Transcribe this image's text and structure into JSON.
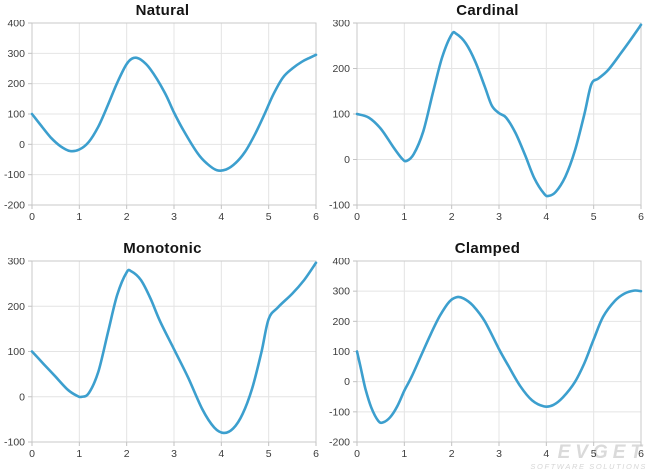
{
  "watermark": {
    "brand": "EVGET",
    "tagline": "SOFTWARE SOLUTIONS"
  },
  "style": {
    "line_color": "#3c9fce",
    "grid_color": "#e4e4e4",
    "border_color": "#c9c9c9",
    "tick_mark_color": "#c2c2c2",
    "tick_label_color": "#3d3d3d",
    "title_color": "#141414",
    "background": "#ffffff"
  },
  "chart_data": [
    {
      "id": "natural",
      "type": "line",
      "title": "Natural",
      "xlim": [
        0,
        6
      ],
      "ylim": [
        -200,
        400
      ],
      "xticks": [
        0,
        1,
        2,
        3,
        4,
        5,
        6
      ],
      "yticks": [
        -200,
        -100,
        0,
        100,
        200,
        300,
        400
      ],
      "grid": true,
      "legend": null,
      "points": [
        [
          0,
          100
        ],
        [
          0.2,
          60
        ],
        [
          0.4,
          22
        ],
        [
          0.6,
          -6
        ],
        [
          0.8,
          -22
        ],
        [
          1.0,
          -17
        ],
        [
          1.2,
          8
        ],
        [
          1.4,
          58
        ],
        [
          1.6,
          128
        ],
        [
          1.8,
          203
        ],
        [
          2.0,
          265
        ],
        [
          2.15,
          285
        ],
        [
          2.3,
          279
        ],
        [
          2.5,
          248
        ],
        [
          2.8,
          172
        ],
        [
          3.0,
          105
        ],
        [
          3.2,
          46
        ],
        [
          3.5,
          -30
        ],
        [
          3.7,
          -64
        ],
        [
          3.9,
          -85
        ],
        [
          4.1,
          -83
        ],
        [
          4.3,
          -62
        ],
        [
          4.5,
          -25
        ],
        [
          4.7,
          30
        ],
        [
          4.9,
          95
        ],
        [
          5.1,
          165
        ],
        [
          5.3,
          220
        ],
        [
          5.5,
          250
        ],
        [
          5.7,
          272
        ],
        [
          5.85,
          284
        ],
        [
          6,
          295
        ]
      ]
    },
    {
      "id": "cardinal",
      "type": "line",
      "title": "Cardinal",
      "xlim": [
        0,
        6
      ],
      "ylim": [
        -100,
        300
      ],
      "xticks": [
        0,
        1,
        2,
        3,
        4,
        5,
        6
      ],
      "yticks": [
        -100,
        0,
        100,
        200,
        300
      ],
      "grid": true,
      "legend": null,
      "points": [
        [
          0,
          100
        ],
        [
          0.25,
          92
        ],
        [
          0.5,
          68
        ],
        [
          0.75,
          30
        ],
        [
          0.95,
          2
        ],
        [
          1.05,
          -3
        ],
        [
          1.2,
          12
        ],
        [
          1.4,
          62
        ],
        [
          1.6,
          145
        ],
        [
          1.8,
          225
        ],
        [
          2.0,
          275
        ],
        [
          2.1,
          276
        ],
        [
          2.3,
          255
        ],
        [
          2.5,
          215
        ],
        [
          2.7,
          160
        ],
        [
          2.85,
          118
        ],
        [
          3.0,
          102
        ],
        [
          3.15,
          92
        ],
        [
          3.35,
          58
        ],
        [
          3.55,
          10
        ],
        [
          3.75,
          -42
        ],
        [
          3.95,
          -75
        ],
        [
          4.05,
          -80
        ],
        [
          4.2,
          -71
        ],
        [
          4.4,
          -38
        ],
        [
          4.6,
          18
        ],
        [
          4.8,
          98
        ],
        [
          4.95,
          165
        ],
        [
          5.1,
          178
        ],
        [
          5.3,
          196
        ],
        [
          5.55,
          230
        ],
        [
          5.8,
          266
        ],
        [
          6,
          296
        ]
      ]
    },
    {
      "id": "monotonic",
      "type": "line",
      "title": "Monotonic",
      "xlim": [
        0,
        6
      ],
      "ylim": [
        -100,
        300
      ],
      "xticks": [
        0,
        1,
        2,
        3,
        4,
        5,
        6
      ],
      "yticks": [
        -100,
        0,
        100,
        200,
        300
      ],
      "grid": true,
      "legend": null,
      "points": [
        [
          0,
          100
        ],
        [
          0.25,
          72
        ],
        [
          0.5,
          44
        ],
        [
          0.75,
          16
        ],
        [
          0.95,
          2
        ],
        [
          1.05,
          0
        ],
        [
          1.2,
          8
        ],
        [
          1.4,
          55
        ],
        [
          1.6,
          140
        ],
        [
          1.8,
          225
        ],
        [
          2.0,
          275
        ],
        [
          2.1,
          277
        ],
        [
          2.3,
          258
        ],
        [
          2.5,
          218
        ],
        [
          2.7,
          168
        ],
        [
          3.0,
          105
        ],
        [
          3.3,
          42
        ],
        [
          3.6,
          -28
        ],
        [
          3.85,
          -68
        ],
        [
          4.05,
          -80
        ],
        [
          4.25,
          -70
        ],
        [
          4.45,
          -38
        ],
        [
          4.65,
          18
        ],
        [
          4.85,
          100
        ],
        [
          5.0,
          172
        ],
        [
          5.2,
          198
        ],
        [
          5.5,
          228
        ],
        [
          5.75,
          258
        ],
        [
          6,
          296
        ]
      ]
    },
    {
      "id": "clamped",
      "type": "line",
      "title": "Clamped",
      "xlim": [
        0,
        6
      ],
      "ylim": [
        -200,
        400
      ],
      "xticks": [
        0,
        1,
        2,
        3,
        4,
        5,
        6
      ],
      "yticks": [
        -200,
        -100,
        0,
        100,
        200,
        300,
        400
      ],
      "grid": true,
      "legend": null,
      "points": [
        [
          0,
          100
        ],
        [
          0.08,
          45
        ],
        [
          0.18,
          -25
        ],
        [
          0.3,
          -85
        ],
        [
          0.45,
          -130
        ],
        [
          0.55,
          -135
        ],
        [
          0.7,
          -118
        ],
        [
          0.85,
          -82
        ],
        [
          1.0,
          -30
        ],
        [
          1.15,
          15
        ],
        [
          1.35,
          85
        ],
        [
          1.55,
          155
        ],
        [
          1.75,
          218
        ],
        [
          1.95,
          265
        ],
        [
          2.1,
          280
        ],
        [
          2.25,
          276
        ],
        [
          2.45,
          252
        ],
        [
          2.7,
          200
        ],
        [
          3.0,
          108
        ],
        [
          3.2,
          52
        ],
        [
          3.45,
          -15
        ],
        [
          3.7,
          -62
        ],
        [
          3.95,
          -82
        ],
        [
          4.15,
          -77
        ],
        [
          4.35,
          -52
        ],
        [
          4.6,
          -2
        ],
        [
          4.8,
          60
        ],
        [
          5.0,
          140
        ],
        [
          5.2,
          215
        ],
        [
          5.45,
          268
        ],
        [
          5.65,
          292
        ],
        [
          5.85,
          302
        ],
        [
          6,
          300
        ]
      ]
    }
  ]
}
